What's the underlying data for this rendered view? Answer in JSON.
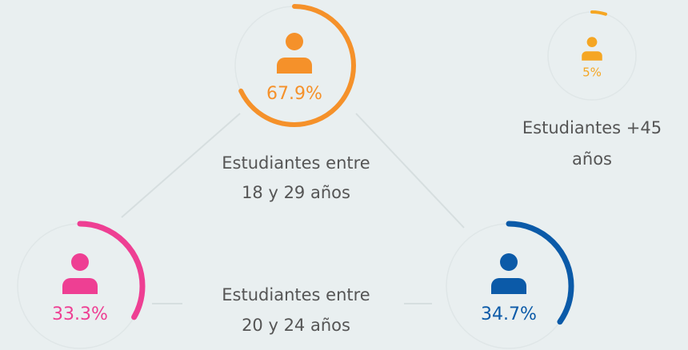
{
  "rings": [
    {
      "value": 67.9,
      "value_label": "67.9%",
      "color": "#f5912a",
      "caption": [
        "Estudiantes entre",
        "18 y 29 años"
      ]
    },
    {
      "value": 5,
      "value_label": "5%",
      "color": "#f5a623",
      "caption": [
        "Estudiantes +45",
        "años"
      ]
    },
    {
      "value": 33.3,
      "value_label": "33.3%",
      "color": "#ee3f93",
      "caption": [
        "Estudiantes entre",
        "20 y 24 años"
      ]
    },
    {
      "value": 34.7,
      "value_label": "34.7%",
      "color": "#0b5aa8"
    }
  ]
}
